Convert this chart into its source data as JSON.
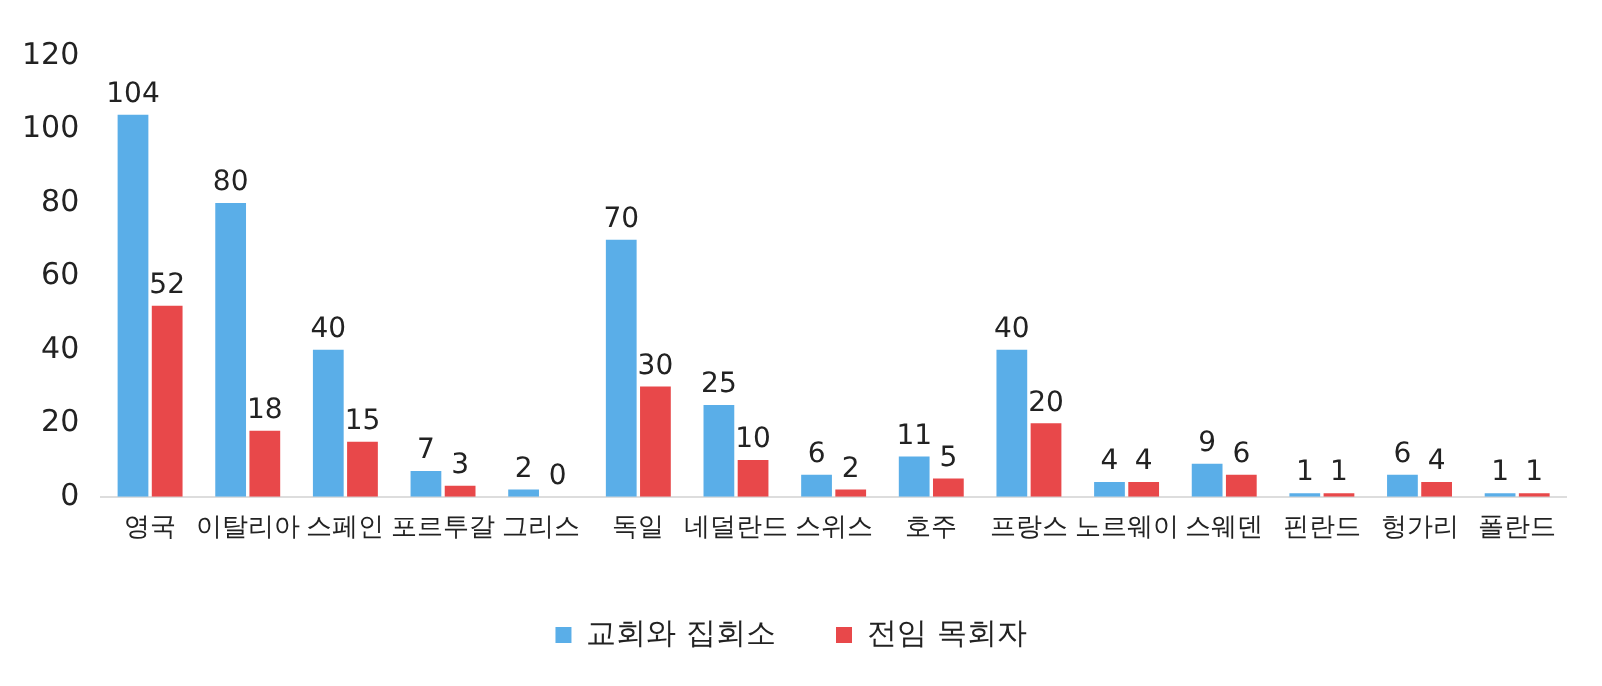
{
  "chart_data": {
    "type": "bar",
    "categories": [
      "영국",
      "이탈리아",
      "스페인",
      "포르투갈",
      "그리스",
      "독일",
      "네덜란드",
      "스위스",
      "호주",
      "프랑스",
      "노르웨이",
      "스웨덴",
      "핀란드",
      "헝가리",
      "폴란드"
    ],
    "series": [
      {
        "name": "교회와 집회소",
        "color": "#5aaee8",
        "values": [
          104,
          80,
          40,
          7,
          2,
          70,
          25,
          6,
          11,
          40,
          4,
          9,
          1,
          6,
          1
        ]
      },
      {
        "name": "전임 목회자",
        "color": "#e8484a",
        "values": [
          52,
          18,
          15,
          3,
          0,
          30,
          10,
          2,
          5,
          20,
          4,
          6,
          1,
          4,
          1
        ]
      }
    ],
    "ylim": [
      0,
      120
    ],
    "yticks": [
      0,
      20,
      40,
      60,
      80,
      100,
      120
    ],
    "grid": false,
    "legend": "bottom",
    "data_labels": true
  }
}
